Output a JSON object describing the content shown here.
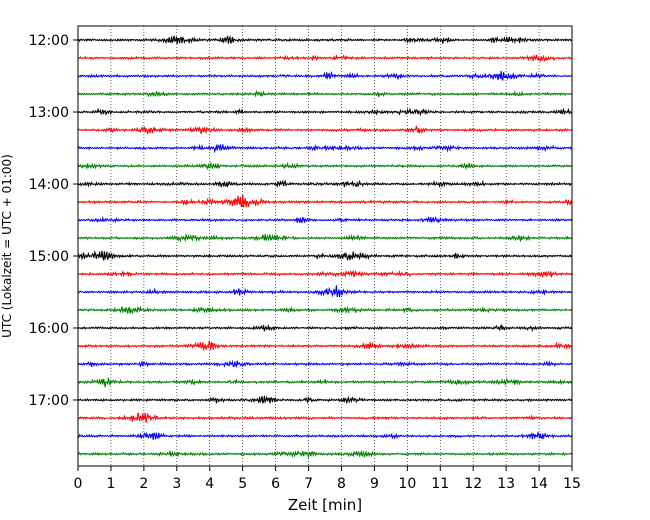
{
  "chart_data": {
    "type": "line",
    "title": "",
    "xlabel": "Zeit  [min]",
    "ylabel": "UTC (Lokalzeit = UTC + 01:00)",
    "xlim": [
      0,
      15
    ],
    "x_ticks": [
      "0",
      "1",
      "2",
      "3",
      "4",
      "5",
      "6",
      "7",
      "8",
      "9",
      "10",
      "11",
      "12",
      "13",
      "14",
      "15"
    ],
    "y_ticks": [
      "12:00",
      "13:00",
      "14:00",
      "15:00",
      "16:00",
      "17:00"
    ],
    "grid": "vertical dotted",
    "start_time": "12:00",
    "trace_interval_min": 15,
    "trace_count": 24,
    "trace_colors": [
      "#000000",
      "#ff0000",
      "#0000ff",
      "#008000"
    ],
    "series_unit": "min per trace"
  }
}
